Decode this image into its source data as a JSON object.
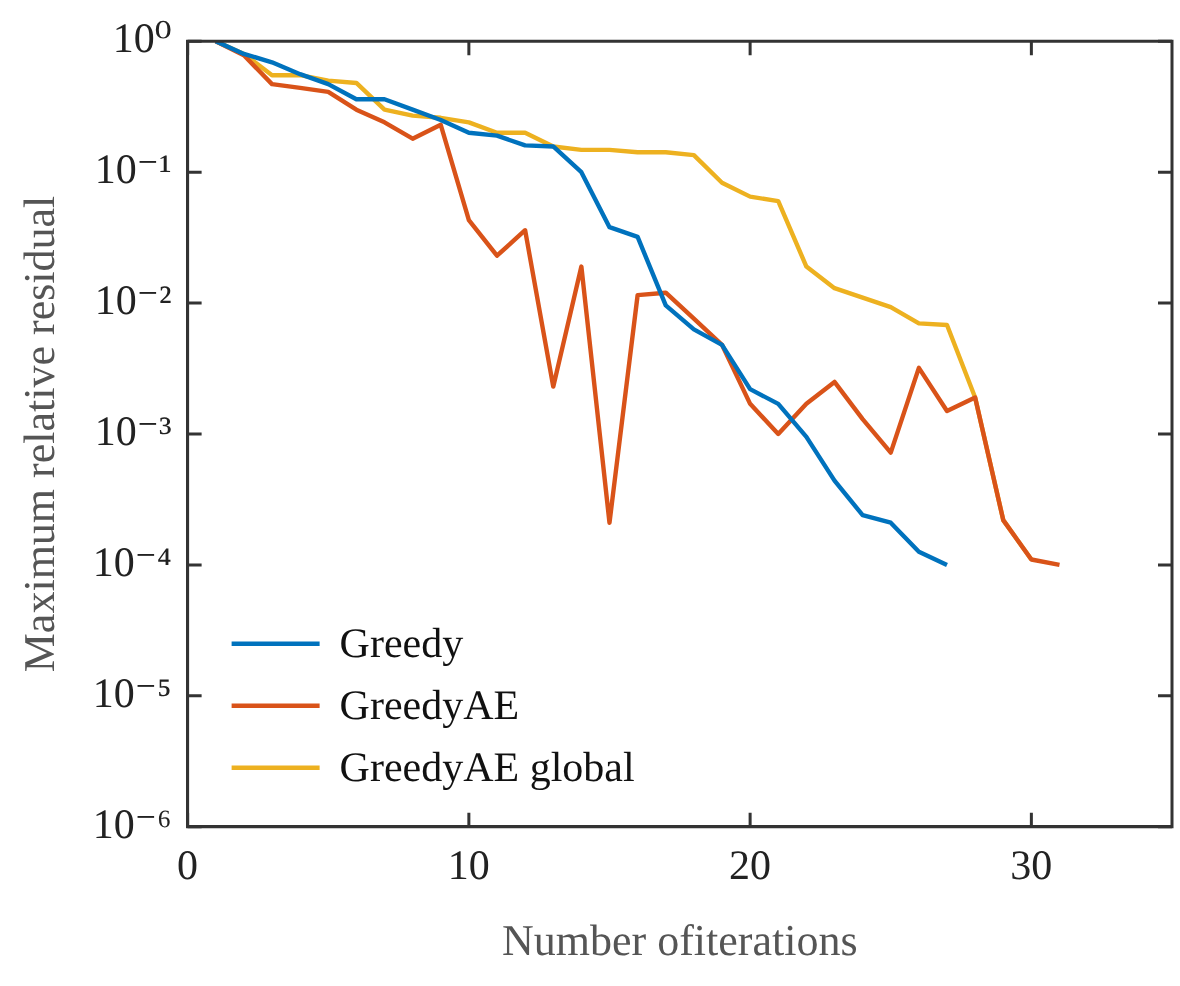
{
  "chart_data": {
    "type": "line",
    "xlabel": "Number ofiterations",
    "ylabel": "Maximum relative residual",
    "xlim": [
      0,
      35
    ],
    "xticks": [
      0,
      10,
      20,
      30
    ],
    "log": "y",
    "ylim": [
      1e-06,
      1
    ],
    "yticks": [
      {
        "value": 1e-06,
        "label": "10⁻⁶"
      },
      {
        "value": 1e-05,
        "label": "10⁻⁵"
      },
      {
        "value": 0.0001,
        "label": "10⁻⁴"
      },
      {
        "value": 0.001,
        "label": "10⁻³"
      },
      {
        "value": 0.01,
        "label": "10⁻²"
      },
      {
        "value": 0.1,
        "label": "10⁻¹"
      },
      {
        "value": 1,
        "label": "10⁰"
      }
    ],
    "legend": "bottom left",
    "series": [
      {
        "name": "Greedy",
        "color": "#0072bd",
        "x": [
          1,
          2,
          3,
          4,
          5,
          6,
          7,
          8,
          9,
          10,
          11,
          12,
          13,
          14,
          15,
          16,
          17,
          18,
          19,
          20,
          21,
          22,
          23,
          24,
          25,
          26,
          27
        ],
        "values": [
          1,
          0.8,
          0.69,
          0.56,
          0.47,
          0.36,
          0.36,
          0.3,
          0.25,
          0.2,
          0.19,
          0.16,
          0.157,
          0.1,
          0.038,
          0.032,
          0.0096,
          0.0063,
          0.0048,
          0.0022,
          0.0017,
          0.00095,
          0.00044,
          0.00024,
          0.00021,
          0.000126,
          0.0001
        ]
      },
      {
        "name": "GreedyAE",
        "color": "#d95319",
        "x": [
          1,
          2,
          3,
          4,
          5,
          6,
          7,
          8,
          9,
          10,
          11,
          12,
          13,
          14,
          15,
          16,
          17,
          18,
          19,
          20,
          21,
          22,
          23,
          24,
          25,
          26,
          27,
          28,
          29,
          30,
          31
        ],
        "values": [
          1,
          0.78,
          0.47,
          0.44,
          0.41,
          0.3,
          0.24,
          0.18,
          0.23,
          0.043,
          0.023,
          0.036,
          0.0023,
          0.019,
          0.00021,
          0.0115,
          0.012,
          0.0076,
          0.0048,
          0.0017,
          0.001,
          0.0017,
          0.0025,
          0.0013,
          0.00072,
          0.0032,
          0.0015,
          0.0019,
          0.00022,
          0.00011,
          0.0001
        ]
      },
      {
        "name": "GreedyAE global",
        "color": "#edb120",
        "x": [
          1,
          2,
          3,
          4,
          5,
          6,
          7,
          8,
          9,
          10,
          11,
          12,
          13,
          14,
          15,
          16,
          17,
          18,
          19,
          20,
          21,
          22,
          23,
          24,
          25,
          26,
          27,
          28,
          29,
          30
        ],
        "values": [
          1,
          0.8,
          0.55,
          0.55,
          0.5,
          0.48,
          0.3,
          0.27,
          0.26,
          0.24,
          0.2,
          0.2,
          0.157,
          0.148,
          0.148,
          0.142,
          0.142,
          0.135,
          0.083,
          0.065,
          0.06,
          0.019,
          0.013,
          0.011,
          0.0093,
          0.007,
          0.0068,
          0.0019,
          0.00022,
          0.00011
        ]
      }
    ]
  }
}
